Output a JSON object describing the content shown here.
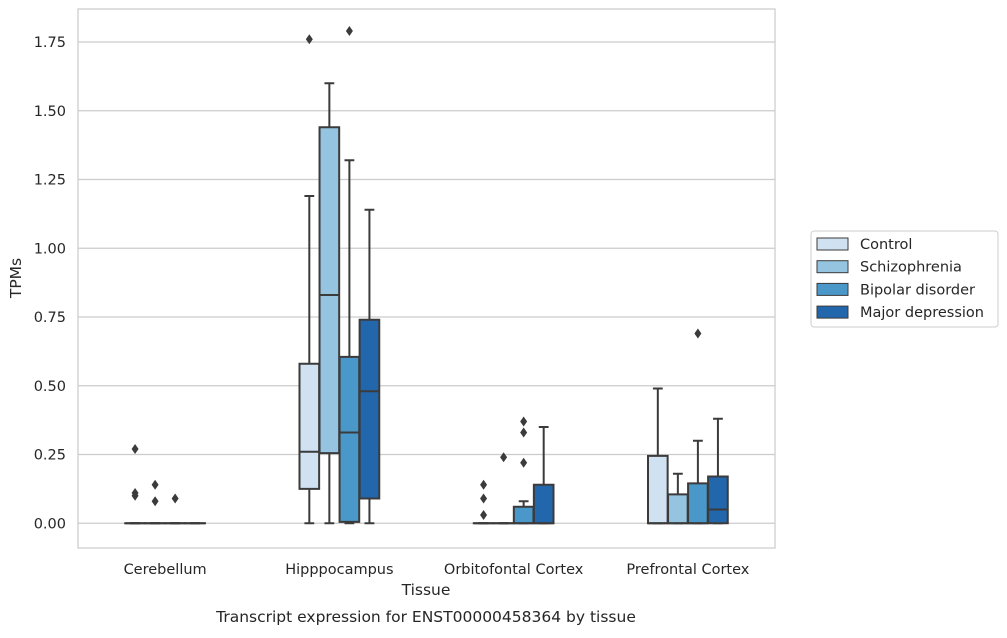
{
  "figure": {
    "caption": "Transcript expression for ENST00000458364 by tissue"
  },
  "chart_data": {
    "type": "box",
    "xlabel": "Tissue",
    "ylabel": "TPMs",
    "ylim": [
      -0.09,
      1.87
    ],
    "yticks": [
      0.0,
      0.25,
      0.5,
      0.75,
      1.0,
      1.25,
      1.5,
      1.75
    ],
    "ytick_labels": [
      "0.00",
      "0.25",
      "0.50",
      "0.75",
      "1.00",
      "1.25",
      "1.50",
      "1.75"
    ],
    "grid": "horizontal",
    "legend_position": "right",
    "categories": [
      "Cerebellum",
      "Hipppocampus",
      "Orbitofontal Cortex",
      "Prefrontal Cortex"
    ],
    "series": [
      {
        "name": "Control",
        "color": "#d0e1f2",
        "boxes": [
          {
            "q1": 0.0,
            "median": 0.0,
            "q3": 0.0,
            "whislo": 0.0,
            "whishi": 0.0,
            "fliers": [
              0.27,
              0.11,
              0.1
            ]
          },
          {
            "q1": 0.125,
            "median": 0.26,
            "q3": 0.58,
            "whislo": 0.0,
            "whishi": 1.19,
            "fliers": [
              1.76
            ]
          },
          {
            "q1": 0.0,
            "median": 0.0,
            "q3": 0.0,
            "whislo": 0.0,
            "whishi": 0.0,
            "fliers": [
              0.14,
              0.09,
              0.03
            ]
          },
          {
            "q1": 0.0,
            "median": 0.0,
            "q3": 0.245,
            "whislo": 0.0,
            "whishi": 0.49,
            "fliers": []
          }
        ]
      },
      {
        "name": "Schizophrenia",
        "color": "#94c4df",
        "boxes": [
          {
            "q1": 0.0,
            "median": 0.0,
            "q3": 0.0,
            "whislo": 0.0,
            "whishi": 0.0,
            "fliers": [
              0.14,
              0.08
            ]
          },
          {
            "q1": 0.255,
            "median": 0.83,
            "q3": 1.44,
            "whislo": 0.0,
            "whishi": 1.6,
            "fliers": []
          },
          {
            "q1": 0.0,
            "median": 0.0,
            "q3": 0.0,
            "whislo": 0.0,
            "whishi": 0.0,
            "fliers": [
              0.24
            ]
          },
          {
            "q1": 0.0,
            "median": 0.0,
            "q3": 0.105,
            "whislo": 0.0,
            "whishi": 0.18,
            "fliers": []
          }
        ]
      },
      {
        "name": "Bipolar disorder",
        "color": "#4a98c9",
        "boxes": [
          {
            "q1": 0.0,
            "median": 0.0,
            "q3": 0.0,
            "whislo": 0.0,
            "whishi": 0.0,
            "fliers": [
              0.09
            ]
          },
          {
            "q1": 0.005,
            "median": 0.33,
            "q3": 0.605,
            "whislo": 0.0,
            "whishi": 1.32,
            "fliers": [
              1.79
            ]
          },
          {
            "q1": 0.0,
            "median": 0.0,
            "q3": 0.06,
            "whislo": 0.0,
            "whishi": 0.08,
            "fliers": [
              0.37,
              0.33,
              0.22
            ]
          },
          {
            "q1": 0.0,
            "median": 0.0,
            "q3": 0.145,
            "whislo": 0.0,
            "whishi": 0.3,
            "fliers": [
              0.69
            ]
          }
        ]
      },
      {
        "name": "Major depression",
        "color": "#2266ac",
        "boxes": [
          {
            "q1": 0.0,
            "median": 0.0,
            "q3": 0.0,
            "whislo": 0.0,
            "whishi": 0.0,
            "fliers": []
          },
          {
            "q1": 0.09,
            "median": 0.48,
            "q3": 0.74,
            "whislo": 0.0,
            "whishi": 1.14,
            "fliers": []
          },
          {
            "q1": 0.0,
            "median": 0.0,
            "q3": 0.14,
            "whislo": 0.0,
            "whishi": 0.35,
            "fliers": []
          },
          {
            "q1": 0.0,
            "median": 0.05,
            "q3": 0.17,
            "whislo": 0.0,
            "whishi": 0.38,
            "fliers": []
          }
        ]
      }
    ]
  }
}
